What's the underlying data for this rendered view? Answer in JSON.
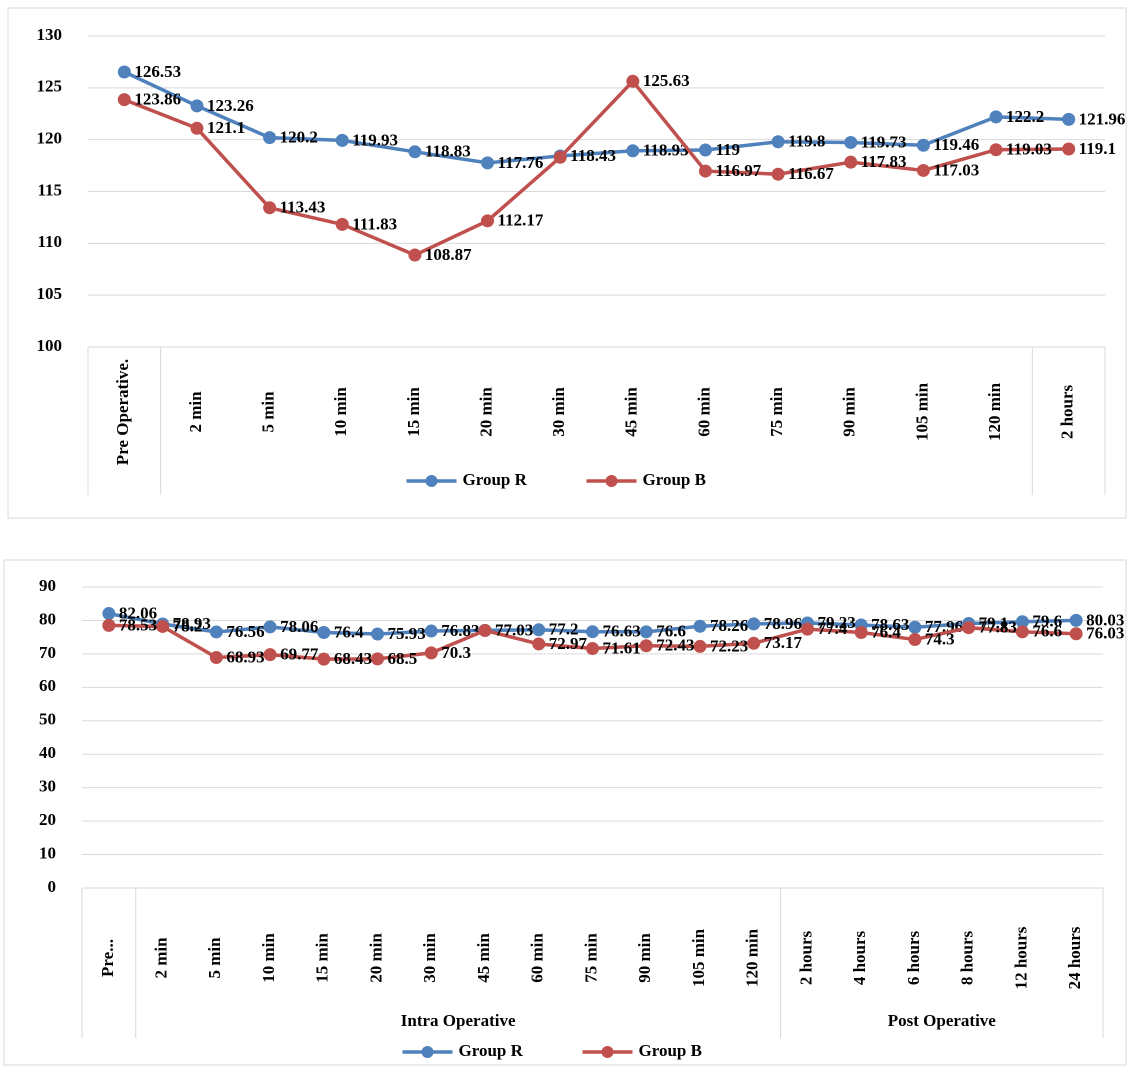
{
  "chart_data": [
    {
      "type": "line",
      "category_groups": [
        {
          "name": null,
          "categories": [
            "Pre Operative."
          ]
        },
        {
          "name": null,
          "categories": [
            "2 min",
            "5 min",
            "10 min",
            "15 min",
            "20 min",
            "30 min",
            "45 min",
            "60 min",
            "75 min",
            "90 min",
            "105 min",
            "120 min"
          ]
        },
        {
          "name": null,
          "categories": [
            "2 hours"
          ]
        }
      ],
      "series": [
        {
          "name": "Group R",
          "color": "#4f81bd",
          "values": [
            126.53,
            123.26,
            120.2,
            119.93,
            118.83,
            117.76,
            118.43,
            118.93,
            119,
            119.8,
            119.73,
            119.46,
            122.2,
            121.96
          ]
        },
        {
          "name": "Group B",
          "color": "#c0504d",
          "values": [
            123.86,
            121.1,
            113.43,
            111.83,
            108.87,
            112.17,
            118.3,
            125.63,
            116.97,
            116.67,
            117.83,
            117.03,
            119.03,
            119.1
          ],
          "value_labels": [
            "123.86",
            "121.1",
            "113.43",
            "111.83",
            "108.87",
            "112.17",
            null,
            "125.63",
            "116.97",
            "116.67",
            "117.83",
            "117.03",
            "119.03",
            "119.1"
          ]
        }
      ],
      "ylim": [
        100,
        130
      ],
      "yticks": [
        100,
        105,
        110,
        115,
        120,
        125,
        130
      ],
      "grid": true,
      "legend": "bottom"
    },
    {
      "type": "line",
      "category_groups": [
        {
          "name": null,
          "categories": [
            "Pre..."
          ]
        },
        {
          "name": "Intra Operative",
          "categories": [
            "2 min",
            "5 min",
            "10 min",
            "15 min",
            "20 min",
            "30 min",
            "45 min",
            "60 min",
            "75 min",
            "90 min",
            "105 min",
            "120 min"
          ]
        },
        {
          "name": "Post Operative",
          "categories": [
            "2 hours",
            "4 hours",
            "6 hours",
            "8 hours",
            "12 hours",
            "24 hours"
          ]
        }
      ],
      "series": [
        {
          "name": "Group R",
          "color": "#4f81bd",
          "values": [
            82.06,
            78.93,
            76.56,
            78.06,
            76.4,
            75.93,
            76.83,
            77.03,
            77.2,
            76.63,
            76.6,
            78.26,
            78.96,
            79.23,
            78.63,
            77.96,
            79.1,
            79.6,
            80.03
          ]
        },
        {
          "name": "Group B",
          "color": "#c0504d",
          "values": [
            78.53,
            78.2,
            68.93,
            69.77,
            68.43,
            68.5,
            70.3,
            77.0,
            72.97,
            71.61,
            72.43,
            72.23,
            73.17,
            77.4,
            76.4,
            74.3,
            77.83,
            76.6,
            76.03
          ]
        }
      ],
      "ylim": [
        0,
        90
      ],
      "yticks": [
        0,
        10,
        20,
        30,
        40,
        50,
        60,
        70,
        80,
        90
      ],
      "grid": true,
      "legend": "bottom"
    }
  ]
}
